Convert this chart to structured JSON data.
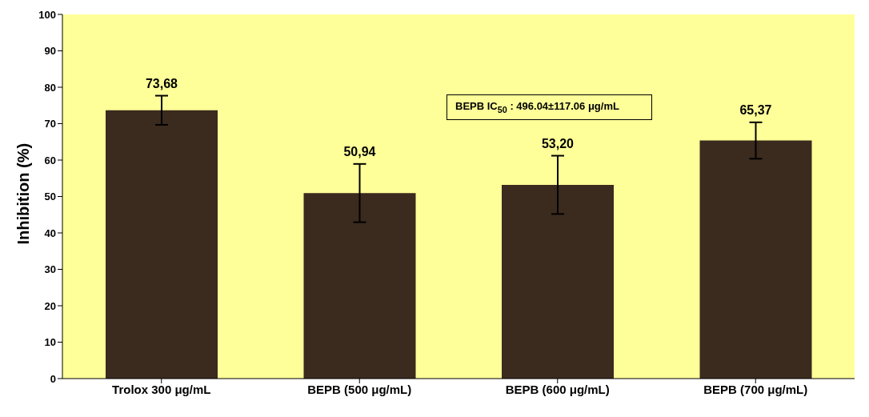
{
  "chart_data": {
    "type": "bar",
    "ylabel": "Inhibition (%)",
    "categories": [
      "Trolox 300 μg/mL",
      "BEPB (500 μg/mL)",
      "BEPB (600 μg/mL)",
      "BEPB (700 μg/mL)"
    ],
    "values": [
      73.68,
      50.94,
      53.2,
      65.37
    ],
    "value_labels": [
      "73,68",
      "50,94",
      "53,20",
      "65,37"
    ],
    "errors": [
      4,
      8,
      8,
      5
    ],
    "color": "#3b2a1e",
    "ylim": [
      0,
      100
    ],
    "yticks": [
      0,
      10,
      20,
      30,
      40,
      50,
      60,
      70,
      80,
      90,
      100
    ],
    "annotations": [
      "BEPB IC$_{50}$ : 496.04±117.06 μg/mL"
    ]
  }
}
